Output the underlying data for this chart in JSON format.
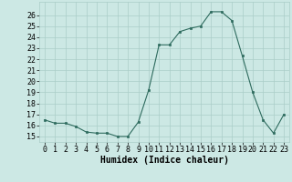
{
  "x": [
    0,
    1,
    2,
    3,
    4,
    5,
    6,
    7,
    8,
    9,
    10,
    11,
    12,
    13,
    14,
    15,
    16,
    17,
    18,
    19,
    20,
    21,
    22,
    23
  ],
  "y": [
    16.5,
    16.2,
    16.2,
    15.9,
    15.4,
    15.3,
    15.3,
    15.0,
    15.0,
    16.3,
    19.2,
    23.3,
    23.3,
    24.5,
    24.8,
    25.0,
    26.3,
    26.3,
    25.5,
    22.3,
    19.0,
    16.5,
    15.3,
    17.0
  ],
  "xlabel": "Humidex (Indice chaleur)",
  "line_color": "#2e6b5e",
  "marker": "s",
  "marker_size": 2.0,
  "bg_color": "#cce8e4",
  "grid_color": "#aacdc8",
  "xlim": [
    -0.5,
    23.5
  ],
  "ylim": [
    14.5,
    27.2
  ],
  "yticks": [
    15,
    16,
    17,
    18,
    19,
    20,
    21,
    22,
    23,
    24,
    25,
    26
  ],
  "xticks": [
    0,
    1,
    2,
    3,
    4,
    5,
    6,
    7,
    8,
    9,
    10,
    11,
    12,
    13,
    14,
    15,
    16,
    17,
    18,
    19,
    20,
    21,
    22,
    23
  ],
  "tick_fontsize": 6.0,
  "label_fontsize": 7.0
}
